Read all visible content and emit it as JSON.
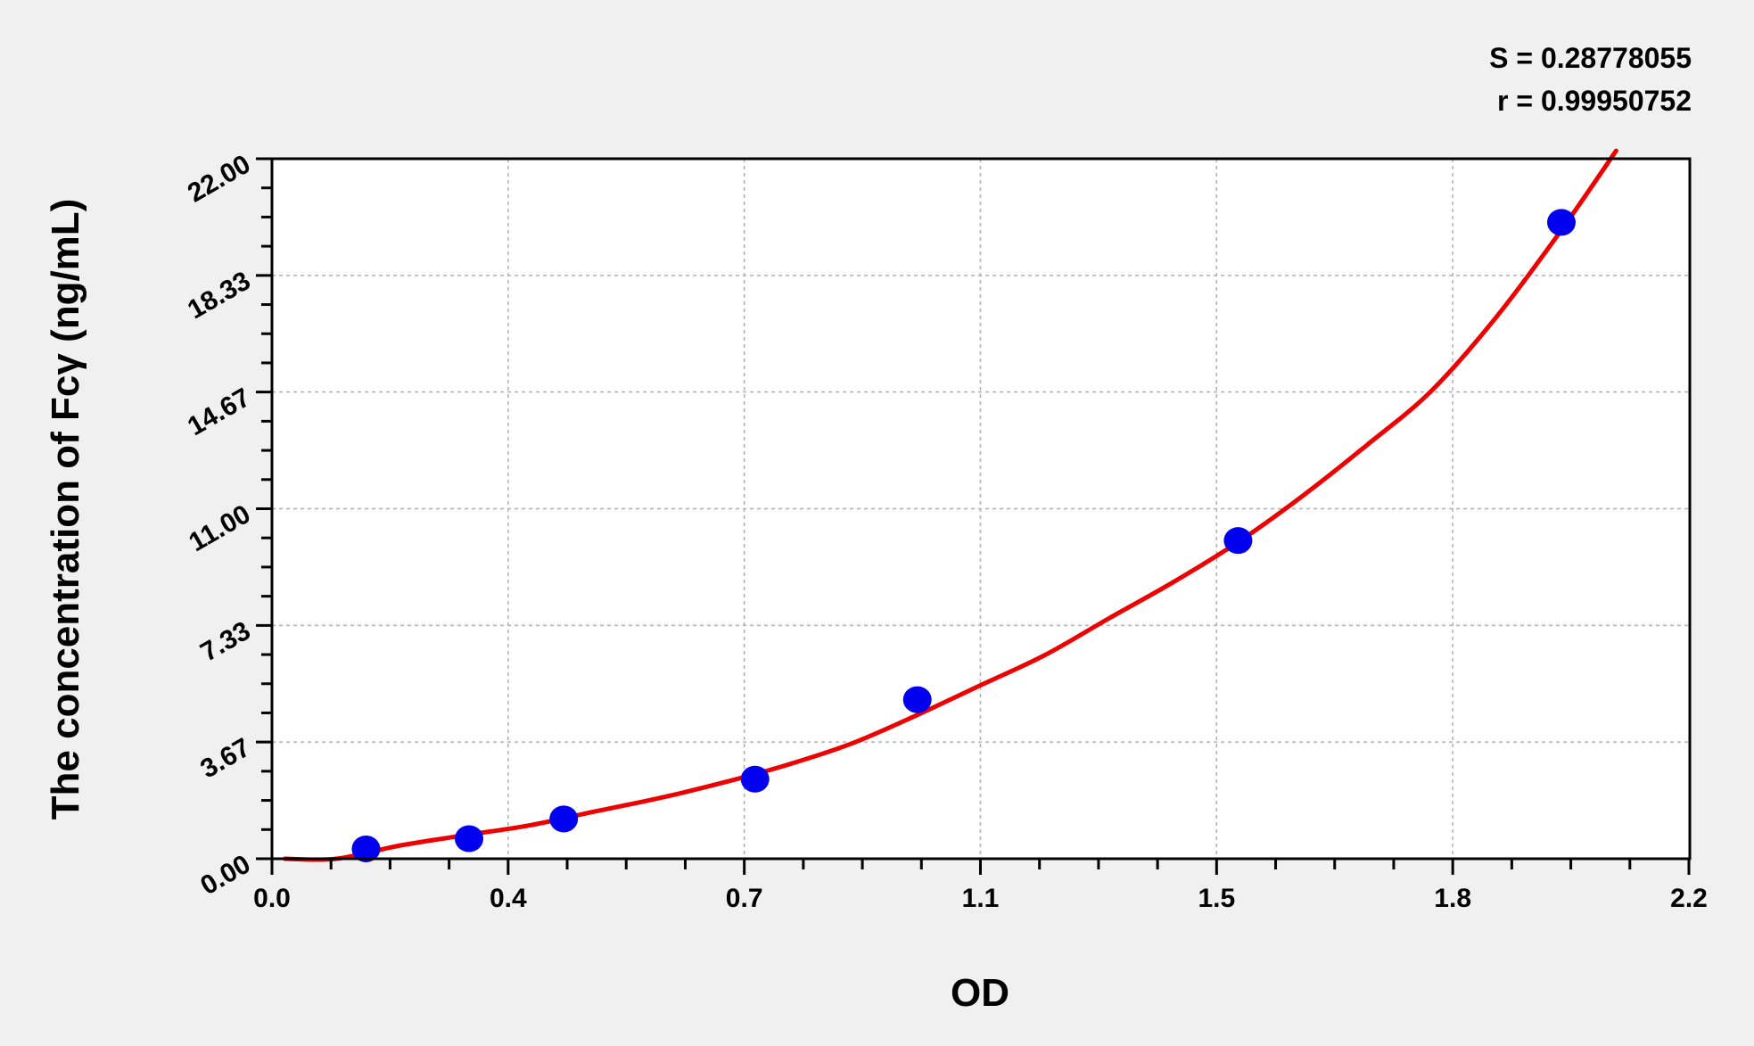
{
  "chart_data": {
    "type": "scatter",
    "title": "",
    "xlabel": "OD",
    "ylabel": "The concentration of Fcγ (ng/mL)",
    "xlim": [
      0.0,
      2.2
    ],
    "ylim": [
      0.0,
      22.0
    ],
    "x_ticks": [
      "0.0",
      "0.4",
      "0.7",
      "1.1",
      "1.5",
      "1.8",
      "2.2"
    ],
    "y_ticks": [
      "0.00",
      "3.67",
      "7.33",
      "11.00",
      "14.67",
      "18.33",
      "22.00"
    ],
    "grid": true,
    "annotations": {
      "s": "S = 0.28778055",
      "r": "r = 0.99950752"
    },
    "points": {
      "color": "#0000ee",
      "x": [
        0.146,
        0.306,
        0.453,
        0.75,
        1.002,
        1.5,
        2.002
      ],
      "y": [
        0.31,
        0.63,
        1.25,
        2.5,
        5.0,
        10.0,
        20.0
      ]
    },
    "fit_curve": {
      "color": "#ee0000",
      "x": [
        0.02,
        0.1,
        0.2,
        0.3,
        0.4,
        0.5,
        0.6,
        0.7,
        0.8,
        0.9,
        1.0,
        1.1,
        1.2,
        1.3,
        1.4,
        1.5,
        1.6,
        1.7,
        1.8,
        1.9,
        2.0,
        2.087
      ],
      "y": [
        0.0,
        0.0,
        0.42,
        0.74,
        1.05,
        1.48,
        1.9,
        2.39,
        2.95,
        3.62,
        4.5,
        5.45,
        6.4,
        7.56,
        8.7,
        9.95,
        11.4,
        13.0,
        14.7,
        17.0,
        19.7,
        22.25
      ]
    }
  }
}
